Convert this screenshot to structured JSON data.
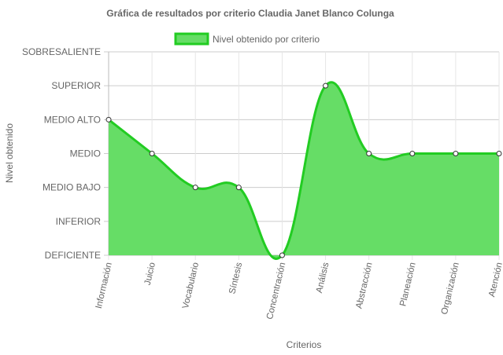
{
  "chart_data": {
    "type": "area",
    "title": "Gráfica de resultados por criterio Claudia Janet Blanco Colunga",
    "xlabel": "Criterios",
    "ylabel": "Nivel obtenido",
    "y_levels": [
      "DEFICIENTE",
      "INFERIOR",
      "MEDIO BAJO",
      "MEDIO",
      "MEDIO ALTO",
      "SUPERIOR",
      "SOBRESALIENTE"
    ],
    "ylim": [
      0,
      6
    ],
    "categories": [
      "Información",
      "Juicio",
      "Vocabulario",
      "Síntesis",
      "Concentración",
      "Análisis",
      "Abstracción",
      "Planeación",
      "Organización",
      "Atención"
    ],
    "series": [
      {
        "name": "Nivel obtenido por criterio",
        "values": [
          4,
          3,
          2,
          2,
          0,
          5,
          3,
          3,
          3,
          3
        ],
        "color": "#22cc22",
        "fill": "#66dd66"
      }
    ],
    "grid": true,
    "legend_position": "top"
  }
}
